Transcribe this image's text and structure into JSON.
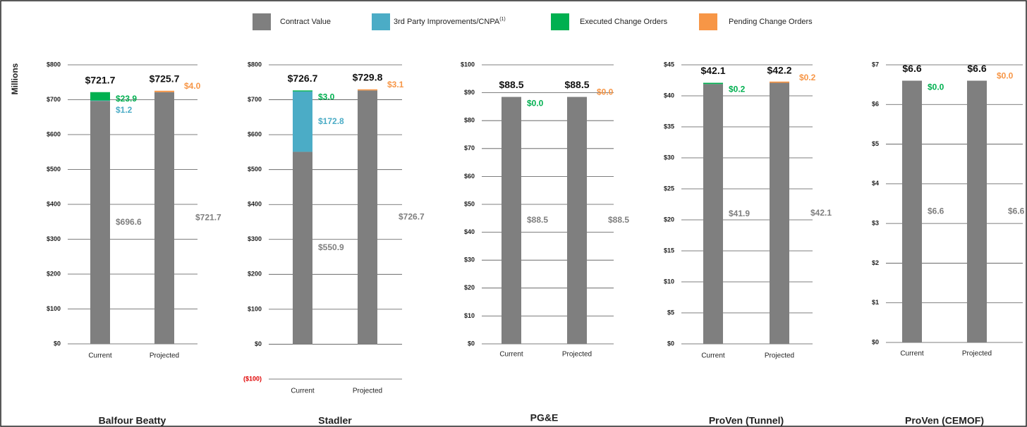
{
  "y_label": "Millions",
  "legend": [
    {
      "name": "Contract Value",
      "color": "#7f7f7f"
    },
    {
      "name": "3rd Party Improvements/CNPA",
      "superscript": "(1)",
      "color": "#4bacc6"
    },
    {
      "name": "Executed Change Orders",
      "color": "#00b050"
    },
    {
      "name": "Pending Change Orders",
      "color": "#f79646"
    }
  ],
  "chart_data": [
    {
      "type": "stacked_bar",
      "title": "Balfour Beatty",
      "categories": [
        "Current",
        "Projected"
      ],
      "ylim": [
        0,
        800
      ],
      "yticks": [
        {
          "value": 0,
          "label": "$0"
        },
        {
          "value": 100,
          "label": "$100"
        },
        {
          "value": 200,
          "label": "$200"
        },
        {
          "value": 300,
          "label": "$300"
        },
        {
          "value": 400,
          "label": "$400"
        },
        {
          "value": 500,
          "label": "$500"
        },
        {
          "value": 600,
          "label": "$600"
        },
        {
          "value": 700,
          "label": "$700"
        },
        {
          "value": 800,
          "label": "$800"
        }
      ],
      "grid": true,
      "series": [
        {
          "values": [
            696.6,
            721.7
          ],
          "value_labels": [
            "$696.6",
            "$721.7"
          ]
        },
        {
          "values": [
            1.2,
            null
          ],
          "value_labels": [
            "$1.2",
            null
          ]
        },
        {
          "values": [
            23.9,
            null
          ],
          "value_labels": [
            "$23.9",
            null
          ]
        },
        {
          "values": [
            null,
            4.0
          ],
          "value_labels": [
            null,
            "$4.0"
          ]
        }
      ],
      "totals": [
        721.7,
        725.7
      ],
      "total_labels": [
        "$721.7",
        "$725.7"
      ]
    },
    {
      "type": "stacked_bar",
      "title": "Stadler",
      "categories": [
        "Current",
        "Projected"
      ],
      "ylim": [
        -100,
        800
      ],
      "yticks": [
        {
          "value": -100,
          "label": "($100)",
          "color": "#e00000"
        },
        {
          "value": 0,
          "label": "$0"
        },
        {
          "value": 100,
          "label": "$100"
        },
        {
          "value": 200,
          "label": "$200"
        },
        {
          "value": 300,
          "label": "$300"
        },
        {
          "value": 400,
          "label": "$400"
        },
        {
          "value": 500,
          "label": "$500"
        },
        {
          "value": 600,
          "label": "$600"
        },
        {
          "value": 700,
          "label": "$700"
        },
        {
          "value": 800,
          "label": "$800"
        }
      ],
      "grid": true,
      "series": [
        {
          "values": [
            550.9,
            726.7
          ],
          "value_labels": [
            "$550.9",
            "$726.7"
          ]
        },
        {
          "values": [
            172.8,
            null
          ],
          "value_labels": [
            "$172.8",
            null
          ]
        },
        {
          "values": [
            3.0,
            null
          ],
          "value_labels": [
            "$3.0",
            null
          ]
        },
        {
          "values": [
            null,
            3.1
          ],
          "value_labels": [
            null,
            "$3.1"
          ]
        }
      ],
      "totals": [
        726.7,
        729.8
      ],
      "total_labels": [
        "$726.7",
        "$729.8"
      ]
    },
    {
      "type": "stacked_bar",
      "title": "PG&E",
      "categories": [
        "Current",
        "Projected"
      ],
      "ylim": [
        0,
        100
      ],
      "yticks": [
        {
          "value": 0,
          "label": "$0"
        },
        {
          "value": 10,
          "label": "$10"
        },
        {
          "value": 20,
          "label": "$20"
        },
        {
          "value": 30,
          "label": "$30"
        },
        {
          "value": 40,
          "label": "$40"
        },
        {
          "value": 50,
          "label": "$50"
        },
        {
          "value": 60,
          "label": "$60"
        },
        {
          "value": 70,
          "label": "$70"
        },
        {
          "value": 80,
          "label": "$80"
        },
        {
          "value": 90,
          "label": "$90"
        },
        {
          "value": 100,
          "label": "$100"
        }
      ],
      "grid": true,
      "series": [
        {
          "values": [
            88.5,
            88.5
          ],
          "value_labels": [
            "$88.5",
            "$88.5"
          ]
        },
        {
          "values": [
            null,
            null
          ],
          "value_labels": [
            null,
            null
          ]
        },
        {
          "values": [
            0.0,
            null
          ],
          "value_labels": [
            "$0.0",
            null
          ]
        },
        {
          "values": [
            null,
            0.0
          ],
          "value_labels": [
            null,
            "$0.0"
          ]
        }
      ],
      "totals": [
        88.5,
        88.5
      ],
      "total_labels": [
        "$88.5",
        "$88.5"
      ]
    },
    {
      "type": "stacked_bar",
      "title": "ProVen (Tunnel)",
      "categories": [
        "Current",
        "Projected"
      ],
      "ylim": [
        0,
        45
      ],
      "yticks": [
        {
          "value": 0,
          "label": "$0"
        },
        {
          "value": 5,
          "label": "$5"
        },
        {
          "value": 10,
          "label": "$10"
        },
        {
          "value": 15,
          "label": "$15"
        },
        {
          "value": 20,
          "label": "$20"
        },
        {
          "value": 25,
          "label": "$25"
        },
        {
          "value": 30,
          "label": "$30"
        },
        {
          "value": 35,
          "label": "$35"
        },
        {
          "value": 40,
          "label": "$40"
        },
        {
          "value": 45,
          "label": "$45"
        }
      ],
      "grid": true,
      "series": [
        {
          "values": [
            41.9,
            42.1
          ],
          "value_labels": [
            "$41.9",
            "$42.1"
          ]
        },
        {
          "values": [
            null,
            null
          ],
          "value_labels": [
            null,
            null
          ]
        },
        {
          "values": [
            0.2,
            null
          ],
          "value_labels": [
            "$0.2",
            null
          ]
        },
        {
          "values": [
            null,
            0.2
          ],
          "value_labels": [
            null,
            "$0.2"
          ]
        }
      ],
      "totals": [
        42.1,
        42.2
      ],
      "total_labels": [
        "$42.1",
        "$42.2"
      ]
    },
    {
      "type": "stacked_bar",
      "title": "ProVen (CEMOF)",
      "categories": [
        "Current",
        "Projected"
      ],
      "ylim": [
        0,
        7
      ],
      "yticks": [
        {
          "value": 0,
          "label": "$0"
        },
        {
          "value": 1,
          "label": "$1"
        },
        {
          "value": 2,
          "label": "$2"
        },
        {
          "value": 3,
          "label": "$3"
        },
        {
          "value": 4,
          "label": "$4"
        },
        {
          "value": 5,
          "label": "$5"
        },
        {
          "value": 6,
          "label": "$6"
        },
        {
          "value": 7,
          "label": "$7"
        }
      ],
      "grid": true,
      "series": [
        {
          "values": [
            6.6,
            6.6
          ],
          "value_labels": [
            "$6.6",
            "$6.6"
          ]
        },
        {
          "values": [
            null,
            null
          ],
          "value_labels": [
            null,
            null
          ]
        },
        {
          "values": [
            0.0,
            null
          ],
          "value_labels": [
            "$0.0",
            null
          ]
        },
        {
          "values": [
            null,
            0.0
          ],
          "value_labels": [
            null,
            "$0.0"
          ]
        }
      ],
      "totals": [
        6.6,
        6.6
      ],
      "total_labels": [
        "$6.6",
        "$6.6"
      ]
    }
  ]
}
